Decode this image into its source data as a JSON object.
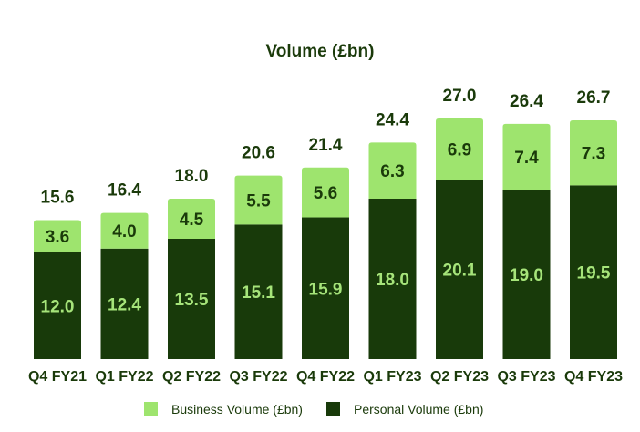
{
  "chart_data": {
    "type": "bar",
    "stacked": true,
    "title": "Volume (£bn)",
    "categories": [
      "Q4 FY21",
      "Q1 FY22",
      "Q2 FY22",
      "Q3 FY22",
      "Q4 FY22",
      "Q1 FY23",
      "Q2 FY23",
      "Q3 FY23",
      "Q4 FY23"
    ],
    "series": [
      {
        "name": "Personal Volume (£bn)",
        "values": [
          12.0,
          12.4,
          13.5,
          15.1,
          15.9,
          18.0,
          20.1,
          19.0,
          19.5
        ],
        "color": "#183a0a"
      },
      {
        "name": "Business Volume (£bn)",
        "values": [
          3.6,
          4.0,
          4.5,
          5.5,
          5.6,
          6.3,
          6.9,
          7.4,
          7.3
        ],
        "color": "#9ee46e"
      }
    ],
    "totals": [
      15.6,
      16.4,
      18.0,
      20.6,
      21.4,
      24.4,
      27.0,
      26.4,
      26.7
    ],
    "legend": [
      "Business Volume (£bn)",
      "Personal Volume (£bn)"
    ],
    "legend_position": "bottom",
    "grid": false,
    "ylim": [
      0,
      27.0
    ]
  }
}
